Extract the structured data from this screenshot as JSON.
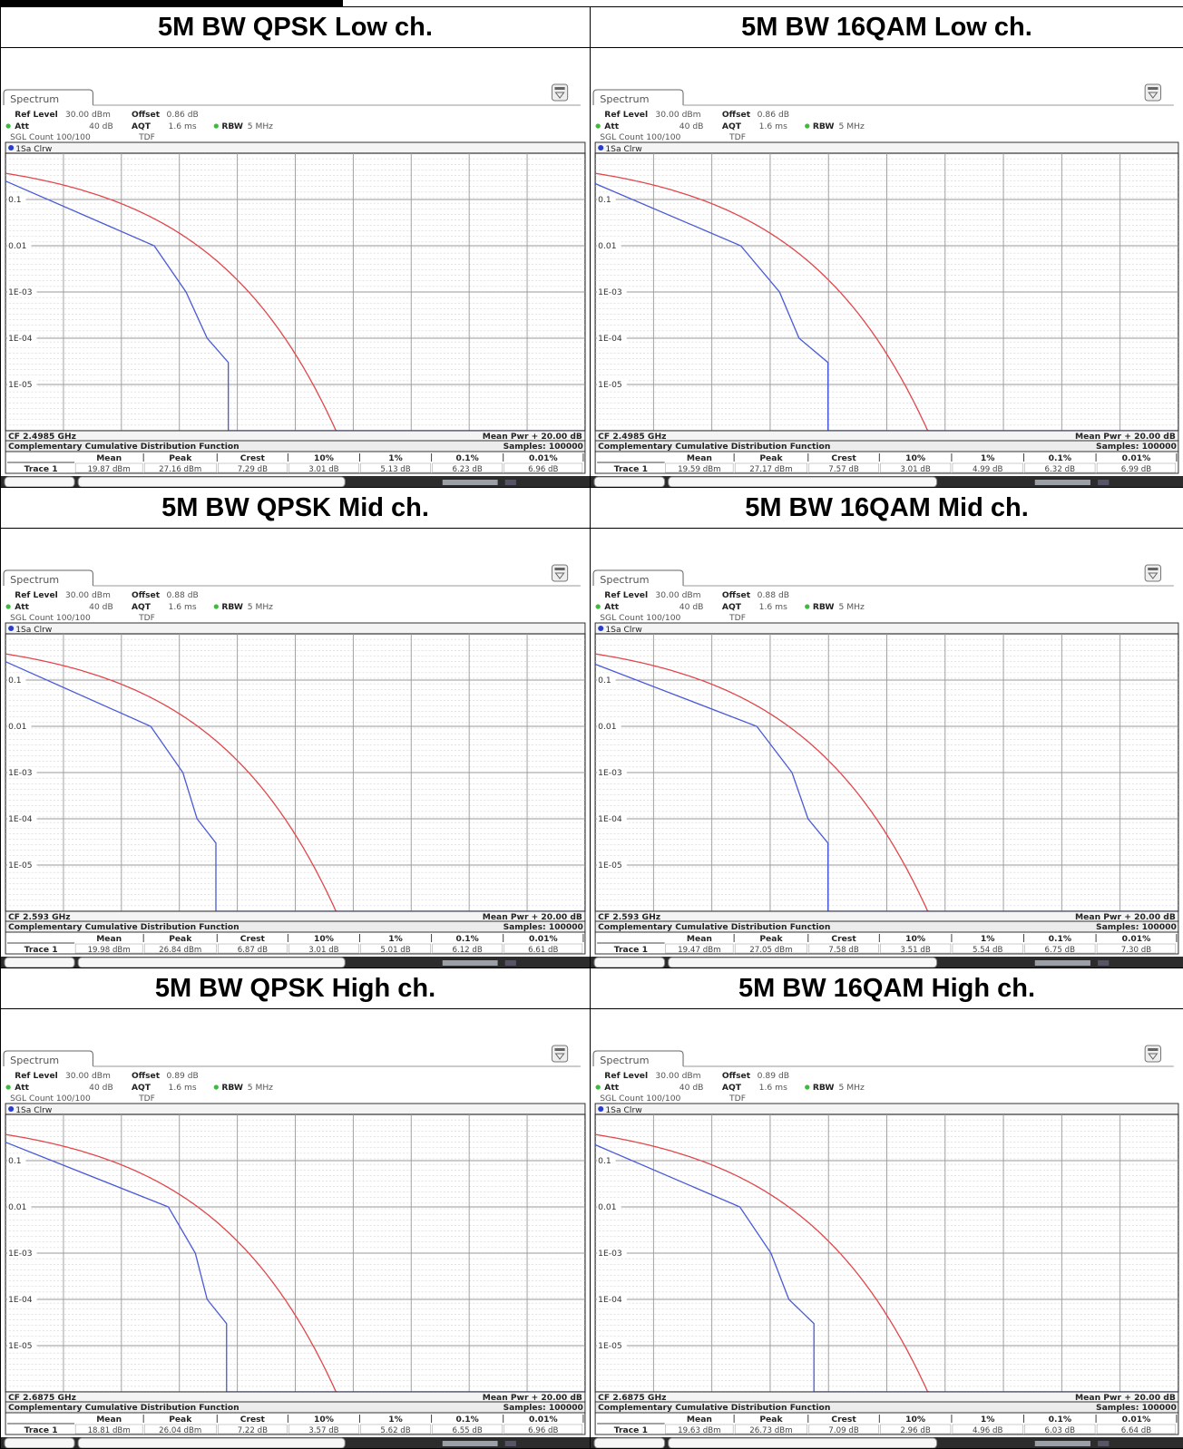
{
  "panels": [
    {
      "title": "5M BW QPSK Low ch.",
      "app_tab": "Spectrum",
      "settings": {
        "ref_level_label": "Ref Level",
        "ref_level": "30.00 dBm",
        "offset_label": "Offset",
        "offset": "0.86 dB",
        "att_label": "Att",
        "att": "40 dB",
        "aqt_label": "AQT",
        "aqt": "1.6 ms",
        "rbw_label": "RBW",
        "rbw": "5 MHz",
        "sgl_label": "SGL Count 100/100",
        "tdf": "TDF"
      },
      "trace_label": "1Sa Clrw",
      "cf": "CF 2.4985 GHz",
      "mean_pwr": "Mean Pwr + 20.00 dB",
      "ccdf_title": "Complementary Cumulative Distribution Function",
      "samples": "Samples: 100000",
      "headers": [
        "Mean",
        "Peak",
        "Crest",
        "10%",
        "1%",
        "0.1%",
        "0.01%"
      ],
      "trace_name": "Trace 1",
      "values": [
        "19.87 dBm",
        "27.16 dBm",
        "7.29 dB",
        "3.01 dB",
        "5.13 dB",
        "6.23 dB",
        "6.96 dB"
      ]
    },
    {
      "title": "5M BW 16QAM Low ch.",
      "app_tab": "Spectrum",
      "settings": {
        "ref_level_label": "Ref Level",
        "ref_level": "30.00 dBm",
        "offset_label": "Offset",
        "offset": "0.86 dB",
        "att_label": "Att",
        "att": "40 dB",
        "aqt_label": "AQT",
        "aqt": "1.6 ms",
        "rbw_label": "RBW",
        "rbw": "5 MHz",
        "sgl_label": "SGL Count 100/100",
        "tdf": "TDF"
      },
      "trace_label": "1Sa Clrw",
      "cf": "CF 2.4985 GHz",
      "mean_pwr": "Mean Pwr + 20.00 dB",
      "ccdf_title": "Complementary Cumulative Distribution Function",
      "samples": "Samples: 100000",
      "headers": [
        "Mean",
        "Peak",
        "Crest",
        "10%",
        "1%",
        "0.1%",
        "0.01%"
      ],
      "trace_name": "Trace 1",
      "values": [
        "19.59 dBm",
        "27.17 dBm",
        "7.57 dB",
        "3.01 dB",
        "4.99 dB",
        "6.32 dB",
        "6.99 dB"
      ]
    },
    {
      "title": "5M BW QPSK Mid ch.",
      "app_tab": "Spectrum",
      "settings": {
        "ref_level_label": "Ref Level",
        "ref_level": "30.00 dBm",
        "offset_label": "Offset",
        "offset": "0.88 dB",
        "att_label": "Att",
        "att": "40 dB",
        "aqt_label": "AQT",
        "aqt": "1.6 ms",
        "rbw_label": "RBW",
        "rbw": "5 MHz",
        "sgl_label": "SGL Count 100/100",
        "tdf": "TDF"
      },
      "trace_label": "1Sa Clrw",
      "cf": "CF 2.593 GHz",
      "mean_pwr": "Mean Pwr + 20.00 dB",
      "ccdf_title": "Complementary Cumulative Distribution Function",
      "samples": "Samples: 100000",
      "headers": [
        "Mean",
        "Peak",
        "Crest",
        "10%",
        "1%",
        "0.1%",
        "0.01%"
      ],
      "trace_name": "Trace 1",
      "values": [
        "19.98 dBm",
        "26.84 dBm",
        "6.87 dB",
        "3.01 dB",
        "5.01 dB",
        "6.12 dB",
        "6.61 dB"
      ]
    },
    {
      "title": "5M BW 16QAM Mid ch.",
      "app_tab": "Spectrum",
      "settings": {
        "ref_level_label": "Ref Level",
        "ref_level": "30.00 dBm",
        "offset_label": "Offset",
        "offset": "0.88 dB",
        "att_label": "Att",
        "att": "40 dB",
        "aqt_label": "AQT",
        "aqt": "1.6 ms",
        "rbw_label": "RBW",
        "rbw": "5 MHz",
        "sgl_label": "SGL Count 100/100",
        "tdf": "TDF"
      },
      "trace_label": "1Sa Clrw",
      "cf": "CF 2.593 GHz",
      "mean_pwr": "Mean Pwr + 20.00 dB",
      "ccdf_title": "Complementary Cumulative Distribution Function",
      "samples": "Samples: 100000",
      "headers": [
        "Mean",
        "Peak",
        "Crest",
        "10%",
        "1%",
        "0.1%",
        "0.01%"
      ],
      "trace_name": "Trace 1",
      "values": [
        "19.47 dBm",
        "27.05 dBm",
        "7.58 dB",
        "3.51 dB",
        "5.54 dB",
        "6.75 dB",
        "7.30 dB"
      ]
    },
    {
      "title": "5M BW QPSK High ch.",
      "app_tab": "Spectrum",
      "settings": {
        "ref_level_label": "Ref Level",
        "ref_level": "30.00 dBm",
        "offset_label": "Offset",
        "offset": "0.89 dB",
        "att_label": "Att",
        "att": "40 dB",
        "aqt_label": "AQT",
        "aqt": "1.6 ms",
        "rbw_label": "RBW",
        "rbw": "5 MHz",
        "sgl_label": "SGL Count 100/100",
        "tdf": "TDF"
      },
      "trace_label": "1Sa Clrw",
      "cf": "CF 2.6875 GHz",
      "mean_pwr": "Mean Pwr + 20.00 dB",
      "ccdf_title": "Complementary Cumulative Distribution Function",
      "samples": "Samples: 100000",
      "headers": [
        "Mean",
        "Peak",
        "Crest",
        "10%",
        "1%",
        "0.1%",
        "0.01%"
      ],
      "trace_name": "Trace 1",
      "values": [
        "18.81 dBm",
        "26.04 dBm",
        "7.22 dB",
        "3.57 dB",
        "5.62 dB",
        "6.55 dB",
        "6.96 dB"
      ]
    },
    {
      "title": "5M BW 16QAM High ch.",
      "app_tab": "Spectrum",
      "settings": {
        "ref_level_label": "Ref Level",
        "ref_level": "30.00 dBm",
        "offset_label": "Offset",
        "offset": "0.89 dB",
        "att_label": "Att",
        "att": "40 dB",
        "aqt_label": "AQT",
        "aqt": "1.6 ms",
        "rbw_label": "RBW",
        "rbw": "5 MHz",
        "sgl_label": "SGL Count 100/100",
        "tdf": "TDF"
      },
      "trace_label": "1Sa Clrw",
      "cf": "CF 2.6875 GHz",
      "mean_pwr": "Mean Pwr + 20.00 dB",
      "ccdf_title": "Complementary Cumulative Distribution Function",
      "samples": "Samples: 100000",
      "headers": [
        "Mean",
        "Peak",
        "Crest",
        "10%",
        "1%",
        "0.1%",
        "0.01%"
      ],
      "trace_name": "Trace 1",
      "values": [
        "19.63 dBm",
        "26.73 dBm",
        "7.09 dB",
        "2.96 dB",
        "4.96 dB",
        "6.03 dB",
        "6.64 dB"
      ]
    }
  ],
  "ccdf_plot": {
    "y_tick_labels": [
      "0.1",
      "0.01",
      "1E-03",
      "1E-04",
      "1E-05"
    ],
    "colors": {
      "measured_trace": "#4b5bd6",
      "gaussian_reference": "#e0484c",
      "grid": "#9a9a9a",
      "frame": "#333333",
      "status_dot": "#3dbb3d",
      "trace_dot": "#2a3ec8"
    }
  },
  "chart_data": [
    {
      "type": "line",
      "y_scale": "log",
      "series": [
        {
          "values": [
            [
              0,
              0.25
            ],
            [
              5.13,
              0.01
            ],
            [
              6.23,
              0.001
            ],
            [
              6.96,
              0.0001
            ]
          ]
        }
      ]
    },
    {
      "type": "line",
      "y_scale": "log",
      "series": [
        {
          "values": [
            [
              0,
              0.22
            ],
            [
              4.99,
              0.01
            ],
            [
              6.32,
              0.001
            ],
            [
              6.99,
              0.0001
            ]
          ]
        }
      ]
    },
    {
      "type": "line",
      "y_scale": "log",
      "series": [
        {
          "values": [
            [
              0,
              0.25
            ],
            [
              5.01,
              0.01
            ],
            [
              6.12,
              0.001
            ],
            [
              6.61,
              0.0001
            ]
          ]
        }
      ]
    },
    {
      "type": "line",
      "y_scale": "log",
      "series": [
        {
          "values": [
            [
              0,
              0.22
            ],
            [
              5.54,
              0.01
            ],
            [
              6.75,
              0.001
            ],
            [
              7.3,
              0.0001
            ]
          ]
        }
      ]
    },
    {
      "type": "line",
      "y_scale": "log",
      "series": [
        {
          "values": [
            [
              0,
              0.25
            ],
            [
              5.62,
              0.01
            ],
            [
              6.55,
              0.001
            ],
            [
              6.96,
              0.0001
            ]
          ]
        }
      ]
    },
    {
      "type": "line",
      "y_scale": "log",
      "series": [
        {
          "values": [
            [
              0,
              0.22
            ],
            [
              4.96,
              0.01
            ],
            [
              6.03,
              0.001
            ],
            [
              6.64,
              0.0001
            ]
          ]
        }
      ]
    }
  ]
}
